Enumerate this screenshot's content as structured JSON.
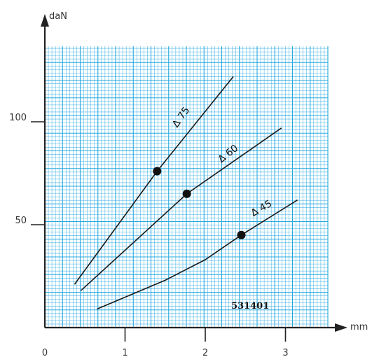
{
  "chart_data": {
    "type": "line",
    "xlabel": "mm",
    "ylabel": "daN",
    "xlim": [
      0,
      3.5
    ],
    "ylim": [
      0,
      135
    ],
    "x_ticks": [
      {
        "value": 0,
        "label": "0"
      },
      {
        "value": 1,
        "label": "1"
      },
      {
        "value": 2,
        "label": "2"
      },
      {
        "value": 3,
        "label": "3"
      }
    ],
    "y_ticks": [
      {
        "value": 50,
        "label": "50"
      },
      {
        "value": 100,
        "label": "100"
      }
    ],
    "grid": true,
    "grid_color": "#27a9e1",
    "annotation": "531401",
    "series": [
      {
        "name": "∆ 75",
        "points": [
          [
            0.37,
            21
          ],
          [
            1.4,
            76
          ],
          [
            2.35,
            122
          ]
        ],
        "marker": [
          1.4,
          76
        ]
      },
      {
        "name": "∆ 60",
        "points": [
          [
            0.45,
            18
          ],
          [
            1.77,
            65
          ],
          [
            2.95,
            97
          ]
        ],
        "marker": [
          1.77,
          65
        ]
      },
      {
        "name": "∆ 45",
        "points": [
          [
            0.65,
            9
          ],
          [
            1.5,
            23
          ],
          [
            2.0,
            33
          ],
          [
            2.45,
            45
          ],
          [
            3.15,
            62
          ]
        ],
        "marker": [
          2.45,
          45
        ]
      }
    ]
  }
}
